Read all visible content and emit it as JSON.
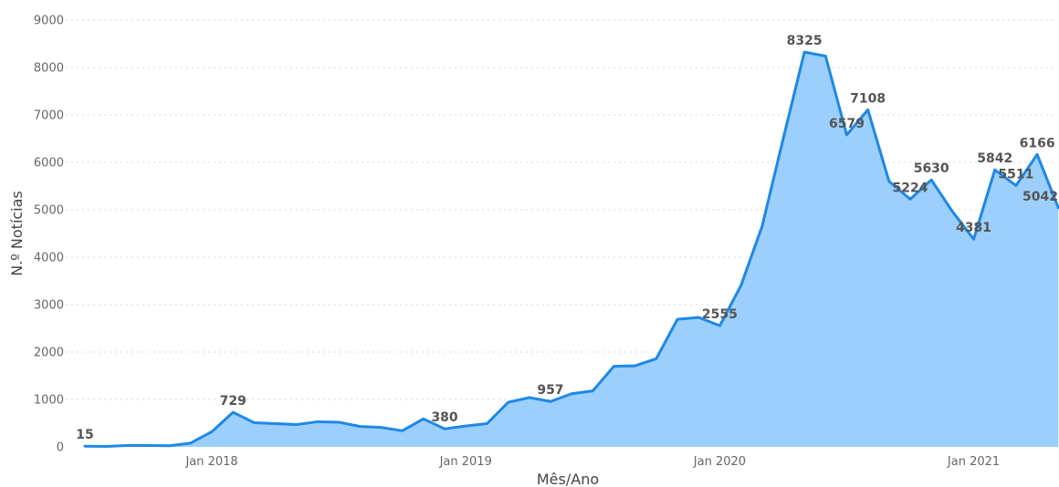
{
  "chart_data": {
    "type": "area",
    "xlabel": "Mês/Ano",
    "ylabel": "N.º Notícias",
    "ylim": [
      0,
      9000
    ],
    "yticks": [
      0,
      1000,
      2000,
      3000,
      4000,
      5000,
      6000,
      7000,
      8000,
      9000
    ],
    "xticks": [
      {
        "label": "Jan 2018",
        "index": 6
      },
      {
        "label": "Jan 2019",
        "index": 18
      },
      {
        "label": "Jan 2020",
        "index": 30
      },
      {
        "label": "Jan 2021",
        "index": 42
      }
    ],
    "grid": true,
    "colors": {
      "line": "#1e88e5",
      "fill": "#9ccffb"
    },
    "series": [
      {
        "values": [
          15,
          10,
          30,
          30,
          25,
          80,
          320,
          729,
          510,
          490,
          470,
          530,
          520,
          430,
          410,
          340,
          590,
          380,
          440,
          490,
          940,
          1040,
          957,
          1120,
          1180,
          1700,
          1710,
          1860,
          2690,
          2730,
          2555,
          3400,
          4650,
          6500,
          8325,
          8240,
          6579,
          7108,
          5600,
          5224,
          5630,
          4960,
          4381,
          5842,
          5511,
          6166,
          5042
        ]
      }
    ],
    "data_labels": [
      {
        "index": 0,
        "text": "15"
      },
      {
        "index": 7,
        "text": "729"
      },
      {
        "index": 17,
        "text": "380"
      },
      {
        "index": 22,
        "text": "957"
      },
      {
        "index": 30,
        "text": "2555"
      },
      {
        "index": 34,
        "text": "8325"
      },
      {
        "index": 36,
        "text": "6579"
      },
      {
        "index": 37,
        "text": "7108"
      },
      {
        "index": 39,
        "text": "5224"
      },
      {
        "index": 40,
        "text": "5630"
      },
      {
        "index": 42,
        "text": "4381"
      },
      {
        "index": 43,
        "text": "5842"
      },
      {
        "index": 44,
        "text": "5511"
      },
      {
        "index": 45,
        "text": "6166"
      },
      {
        "index": 46,
        "text": "5042"
      }
    ]
  }
}
